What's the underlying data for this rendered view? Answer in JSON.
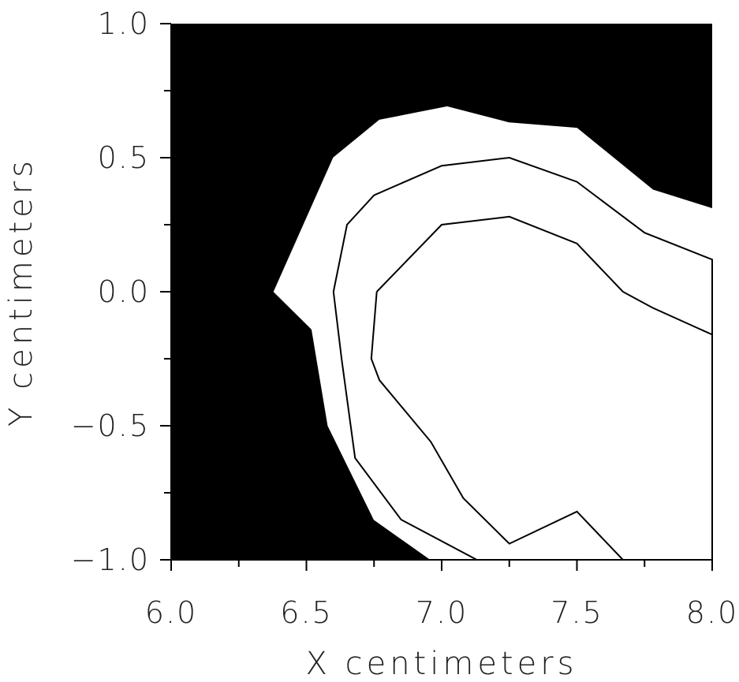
{
  "chart_data": {
    "type": "contour",
    "title": "",
    "xlabel": "X centimeters",
    "ylabel": "Y centimeters",
    "xlim": [
      6.0,
      8.0
    ],
    "ylim": [
      -1.0,
      1.0
    ],
    "xticks": [
      6.0,
      6.5,
      7.0,
      7.5,
      8.0
    ],
    "yticks": [
      1.0,
      0.5,
      0.0,
      -0.5,
      -1.0
    ],
    "xtick_labels": [
      "6.0",
      "6.5",
      "7.0",
      "7.5",
      "8.0"
    ],
    "ytick_labels": [
      "1.0",
      "0.5",
      "0.0",
      "−0.5",
      "−1.0"
    ],
    "colors": {
      "background_fill": "#000000",
      "band_fill": "#ffffff",
      "contour_stroke": "#000000"
    },
    "contours": [
      {
        "level": 1,
        "fill": "white",
        "points": [
          [
            6.38,
            0.0
          ],
          [
            6.52,
            -0.14
          ],
          [
            6.58,
            -0.5
          ],
          [
            6.75,
            -0.85
          ],
          [
            6.96,
            -1.0
          ],
          [
            8.0,
            -1.0
          ],
          [
            8.0,
            0.31
          ],
          [
            7.78,
            0.38
          ],
          [
            7.5,
            0.61
          ],
          [
            7.25,
            0.63
          ],
          [
            7.02,
            0.69
          ],
          [
            6.77,
            0.64
          ],
          [
            6.6,
            0.5
          ],
          [
            6.38,
            0.0
          ]
        ]
      },
      {
        "level": 2,
        "fill": "none",
        "points": [
          [
            6.6,
            0.0
          ],
          [
            6.63,
            -0.25
          ],
          [
            6.68,
            -0.62
          ],
          [
            6.85,
            -0.85
          ],
          [
            7.13,
            -1.0
          ],
          [
            8.0,
            -1.0
          ],
          [
            8.0,
            0.12
          ],
          [
            7.75,
            0.22
          ],
          [
            7.5,
            0.41
          ],
          [
            7.25,
            0.5
          ],
          [
            7.0,
            0.47
          ],
          [
            6.75,
            0.36
          ],
          [
            6.65,
            0.25
          ],
          [
            6.6,
            0.0
          ]
        ]
      },
      {
        "level": 3,
        "fill": "none",
        "points": [
          [
            6.76,
            0.0
          ],
          [
            6.74,
            -0.25
          ],
          [
            6.77,
            -0.33
          ],
          [
            6.96,
            -0.56
          ],
          [
            7.08,
            -0.77
          ],
          [
            7.25,
            -0.94
          ],
          [
            7.5,
            -0.82
          ],
          [
            7.67,
            -1.0
          ],
          [
            8.0,
            -1.0
          ],
          [
            8.0,
            -0.16
          ],
          [
            7.78,
            -0.06
          ],
          [
            7.67,
            0.0
          ],
          [
            7.5,
            0.18
          ],
          [
            7.25,
            0.28
          ],
          [
            7.0,
            0.25
          ],
          [
            6.76,
            0.0
          ]
        ]
      }
    ]
  }
}
